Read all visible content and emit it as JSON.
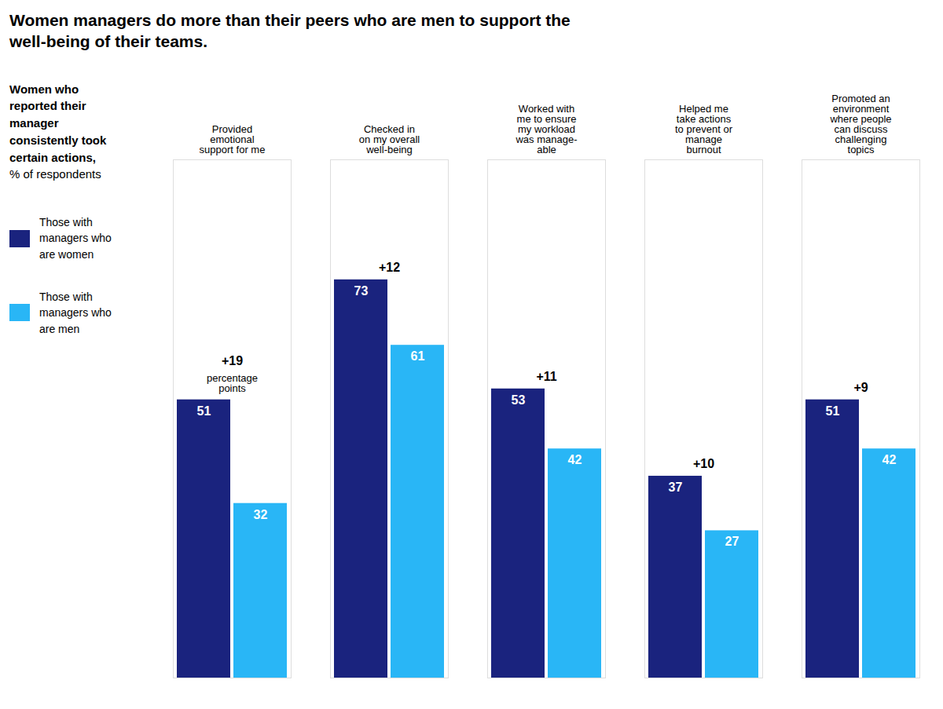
{
  "chart_data": {
    "type": "bar",
    "title": "Women managers do more than their peers who are men to support the\nwell-being of their teams.",
    "subtitle": "Women who\nreported their\nmanager\nconsistently took\ncertain actions,\n% of respondents",
    "categories": [
      "Provided\nemotional\nsupport for me",
      "Checked in\non my overall\nwell-being",
      "Worked with\nme to ensure\nmy workload\nwas manage-\nable",
      "Helped me\ntake actions\nto prevent or\nmanage\nburnout",
      "Promoted an\nenvironment\nwhere people\ncan discuss\nchallenging\ntopics"
    ],
    "series": [
      {
        "name": "Those with\nmanagers who\nare women",
        "color": "#1a237e",
        "values": [
          51,
          73,
          53,
          37,
          51
        ]
      },
      {
        "name": "Those with\nmanagers who\nare men",
        "color": "#29b6f6",
        "values": [
          32,
          61,
          42,
          27,
          42
        ]
      }
    ],
    "annotations": [
      {
        "text": "+19",
        "note": "percentage\npoints"
      },
      {
        "text": "+12"
      },
      {
        "text": "+11"
      },
      {
        "text": "+10"
      },
      {
        "text": "+9"
      }
    ],
    "ylim": [
      0,
      95
    ],
    "data_labels": true,
    "tick_labels": "x",
    "grid": false
  }
}
